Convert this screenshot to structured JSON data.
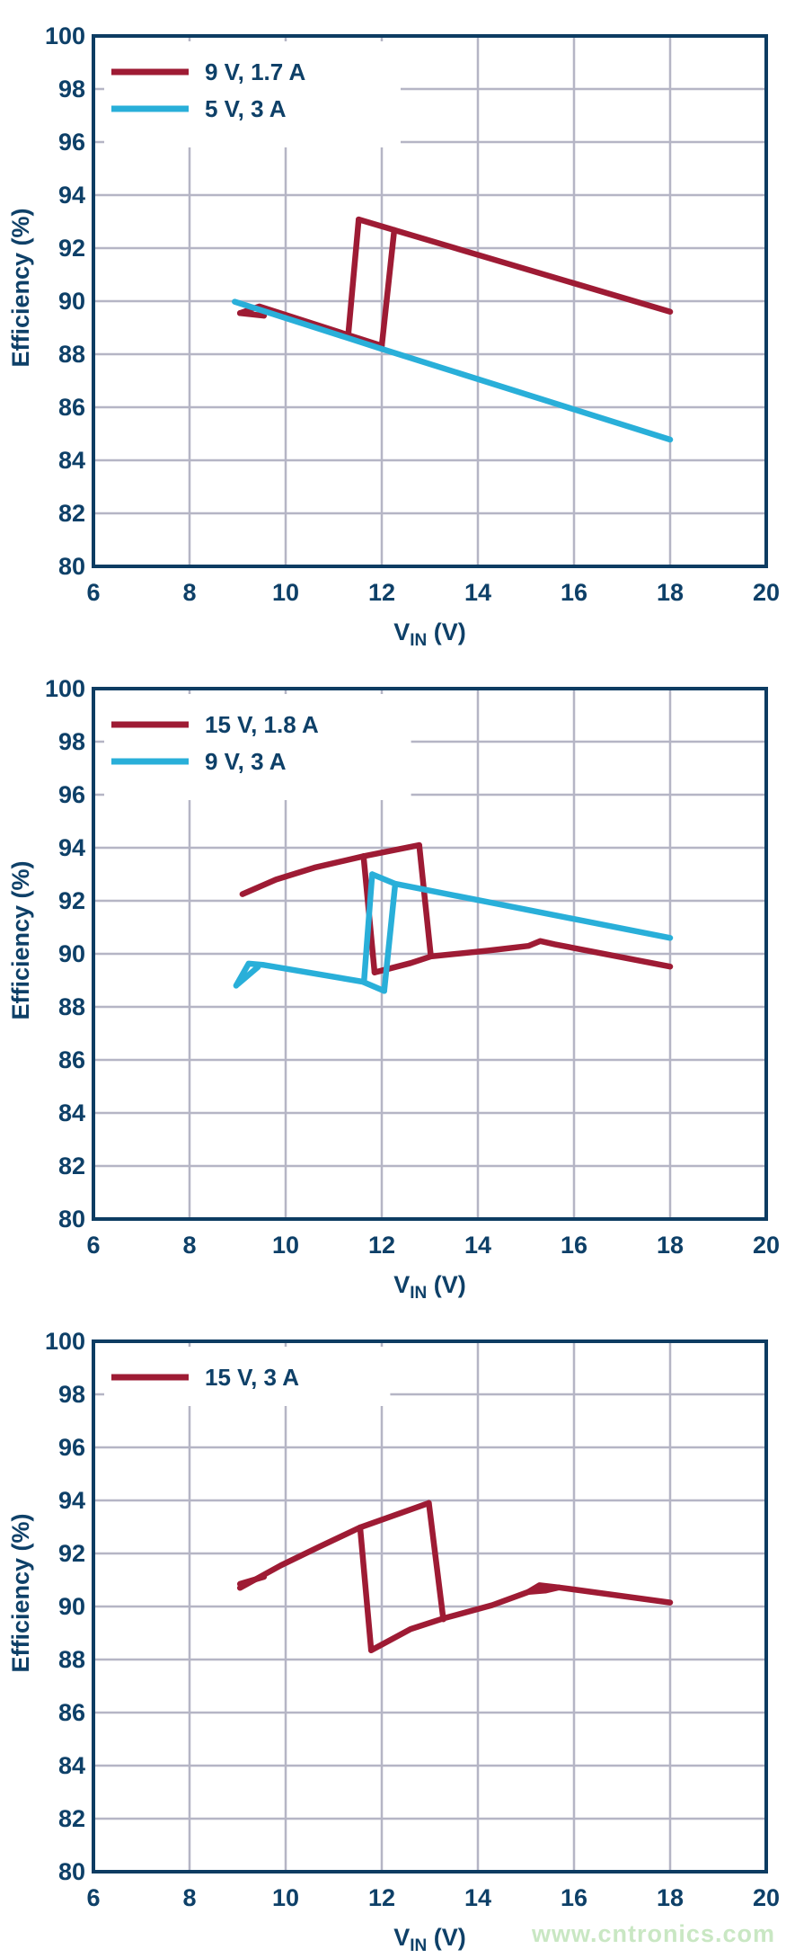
{
  "colors": {
    "navy_text": "#0e4068",
    "frame": "#0d3c62",
    "grid": "#b5b5c5",
    "red": "#9e1b34",
    "cyan": "#29afd9",
    "legend_bg": "#ffffff",
    "watermark_green": "#c9e7c3"
  },
  "watermark": {
    "text": "www.cntronics.com"
  },
  "axes_shared": {
    "x_label_pre": "V",
    "x_label_sub": "IN",
    "x_label_post": " (V)",
    "y_label": "Efficiency (%)",
    "x_ticks": [
      6,
      8,
      10,
      12,
      14,
      16,
      18,
      20
    ],
    "y_ticks": [
      80,
      82,
      84,
      86,
      88,
      90,
      92,
      94,
      96,
      98,
      100
    ],
    "x_range": [
      6,
      20
    ],
    "y_range": [
      80,
      100
    ],
    "grid": "on",
    "legend_position": "top-left"
  },
  "chart_data": [
    {
      "type": "line",
      "xlabel": "VIN (V)",
      "ylabel": "Efficiency (%)",
      "xlim": [
        6,
        20
      ],
      "ylim": [
        80,
        100
      ],
      "series": [
        {
          "name": "9 V, 1.7 A",
          "color_key": "red",
          "segments": [
            [
              [
                9.05,
                89.55
              ],
              [
                9.45,
                89.8
              ],
              [
                12.0,
                88.32
              ]
            ],
            [
              [
                12.0,
                88.32
              ],
              [
                12.26,
                92.68
              ]
            ],
            [
              [
                11.52,
                93.08
              ],
              [
                12.26,
                92.68
              ],
              [
                18,
                89.6
              ]
            ],
            [
              [
                11.52,
                93.08
              ],
              [
                11.3,
                88.7
              ]
            ],
            [
              [
                9.05,
                89.55
              ],
              [
                9.55,
                89.45
              ]
            ]
          ]
        },
        {
          "name": "5 V, 3 A",
          "color_key": "cyan",
          "segments": [
            [
              [
                8.94,
                89.98
              ],
              [
                12.0,
                88.2
              ],
              [
                18,
                84.78
              ]
            ]
          ]
        }
      ]
    },
    {
      "type": "line",
      "xlabel": "VIN (V)",
      "ylabel": "Efficiency (%)",
      "xlim": [
        6,
        20
      ],
      "ylim": [
        80,
        100
      ],
      "series": [
        {
          "name": "15 V, 1.8 A",
          "color_key": "red",
          "segments": [
            [
              [
                9.1,
                92.25
              ],
              [
                9.8,
                92.8
              ],
              [
                10.6,
                93.25
              ],
              [
                11.62,
                93.68
              ]
            ],
            [
              [
                11.62,
                93.68
              ],
              [
                12.78,
                94.1
              ]
            ],
            [
              [
                12.78,
                94.1
              ],
              [
                13.02,
                89.92
              ]
            ],
            [
              [
                11.62,
                93.68
              ],
              [
                11.85,
                89.3
              ]
            ],
            [
              [
                11.85,
                89.3
              ],
              [
                12.6,
                89.65
              ],
              [
                13.02,
                89.9
              ],
              [
                14.2,
                90.12
              ],
              [
                15.05,
                90.3
              ],
              [
                15.3,
                90.48
              ],
              [
                15.6,
                90.36
              ],
              [
                18,
                89.52
              ]
            ]
          ]
        },
        {
          "name": "9 V, 3 A",
          "color_key": "cyan",
          "segments": [
            [
              [
                8.97,
                88.8
              ],
              [
                9.23,
                89.63
              ],
              [
                9.55,
                89.58
              ],
              [
                11.6,
                88.95
              ],
              [
                12.05,
                88.6
              ]
            ],
            [
              [
                9.0,
                88.85
              ],
              [
                9.42,
                89.5
              ]
            ],
            [
              [
                12.05,
                88.6
              ],
              [
                12.28,
                92.64
              ]
            ],
            [
              [
                11.8,
                93.0
              ],
              [
                12.28,
                92.64
              ],
              [
                18,
                90.6
              ]
            ],
            [
              [
                11.8,
                93.0
              ],
              [
                11.63,
                88.95
              ]
            ]
          ]
        }
      ]
    },
    {
      "type": "line",
      "xlabel": "VIN (V)",
      "ylabel": "Efficiency (%)",
      "xlim": [
        6,
        20
      ],
      "ylim": [
        80,
        100
      ],
      "series": [
        {
          "name": "15 V, 3 A",
          "color_key": "red",
          "segments": [
            [
              [
                9.05,
                90.7
              ],
              [
                9.9,
                91.55
              ],
              [
                10.7,
                92.25
              ],
              [
                11.55,
                92.98
              ]
            ],
            [
              [
                9.05,
                90.85
              ],
              [
                9.55,
                91.12
              ]
            ],
            [
              [
                11.55,
                92.98
              ],
              [
                12.98,
                93.9
              ]
            ],
            [
              [
                12.98,
                93.9
              ],
              [
                13.28,
                89.52
              ]
            ],
            [
              [
                11.55,
                92.98
              ],
              [
                11.78,
                88.35
              ]
            ],
            [
              [
                11.78,
                88.35
              ],
              [
                12.6,
                89.15
              ],
              [
                13.28,
                89.55
              ],
              [
                14.3,
                90.05
              ],
              [
                15.05,
                90.55
              ],
              [
                15.28,
                90.8
              ],
              [
                15.68,
                90.72
              ],
              [
                18,
                90.15
              ]
            ],
            [
              [
                15.05,
                90.55
              ],
              [
                15.4,
                90.6
              ],
              [
                15.68,
                90.72
              ]
            ]
          ]
        }
      ]
    }
  ]
}
